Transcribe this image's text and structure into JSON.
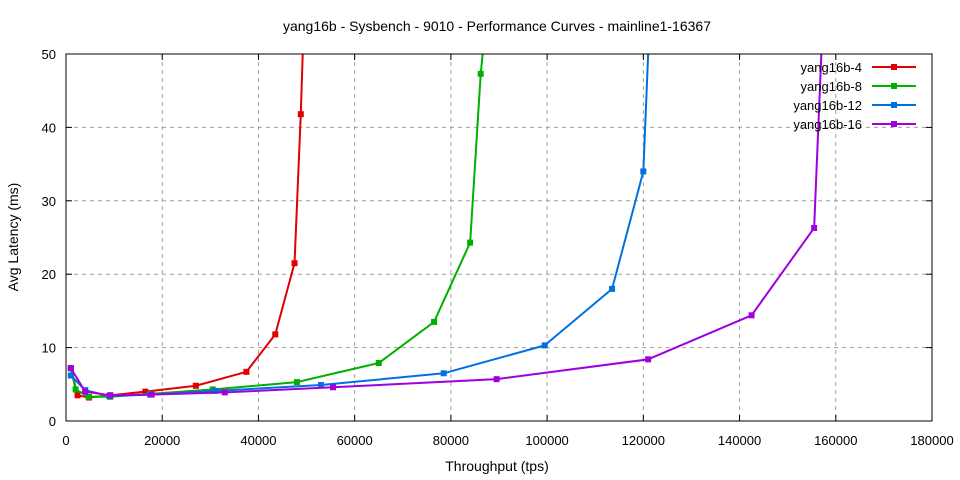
{
  "chart_data": {
    "type": "line",
    "title": "yang16b - Sysbench - 9010 - Performance Curves - mainline1-16367",
    "xlabel": "Throughput (tps)",
    "ylabel": "Avg Latency (ms)",
    "xlim": [
      0,
      180000
    ],
    "ylim": [
      0,
      50
    ],
    "xticks": [
      0,
      20000,
      40000,
      60000,
      80000,
      100000,
      120000,
      140000,
      160000,
      180000
    ],
    "yticks": [
      0,
      10,
      20,
      30,
      40,
      50
    ],
    "grid": true,
    "legend_position": "top-right",
    "series": [
      {
        "name": "yang16b-4",
        "color": "#e00000",
        "points": [
          [
            1000,
            7.2
          ],
          [
            2400,
            3.5
          ],
          [
            4800,
            3.2
          ],
          [
            9200,
            3.5
          ],
          [
            16500,
            4.0
          ],
          [
            27000,
            4.8
          ],
          [
            37500,
            6.7
          ],
          [
            43500,
            11.8
          ],
          [
            47500,
            21.5
          ],
          [
            48800,
            41.8
          ],
          [
            49200,
            50.0
          ]
        ]
      },
      {
        "name": "yang16b-8",
        "color": "#00b000",
        "points": [
          [
            1000,
            7.2
          ],
          [
            2000,
            4.3
          ],
          [
            4700,
            3.3
          ],
          [
            9200,
            3.3
          ],
          [
            17500,
            3.7
          ],
          [
            30500,
            4.3
          ],
          [
            48000,
            5.3
          ],
          [
            65000,
            7.9
          ],
          [
            76500,
            13.5
          ],
          [
            84000,
            24.3
          ],
          [
            86200,
            47.3
          ],
          [
            86600,
            50.0
          ]
        ]
      },
      {
        "name": "yang16b-12",
        "color": "#0070e0",
        "points": [
          [
            1000,
            6.2
          ],
          [
            4000,
            4.2
          ],
          [
            9000,
            3.4
          ],
          [
            17500,
            3.6
          ],
          [
            31000,
            4.1
          ],
          [
            53000,
            4.9
          ],
          [
            78500,
            6.5
          ],
          [
            99500,
            10.3
          ],
          [
            113500,
            18.0
          ],
          [
            120000,
            34.0
          ],
          [
            121000,
            50.0
          ]
        ]
      },
      {
        "name": "yang16b-16",
        "color": "#a000e0",
        "points": [
          [
            1000,
            7.2
          ],
          [
            4000,
            4.0
          ],
          [
            9200,
            3.5
          ],
          [
            17800,
            3.6
          ],
          [
            33000,
            3.9
          ],
          [
            55500,
            4.6
          ],
          [
            89500,
            5.7
          ],
          [
            121000,
            8.4
          ],
          [
            142500,
            14.4
          ],
          [
            155500,
            26.3
          ],
          [
            157000,
            50.0
          ]
        ]
      }
    ]
  }
}
